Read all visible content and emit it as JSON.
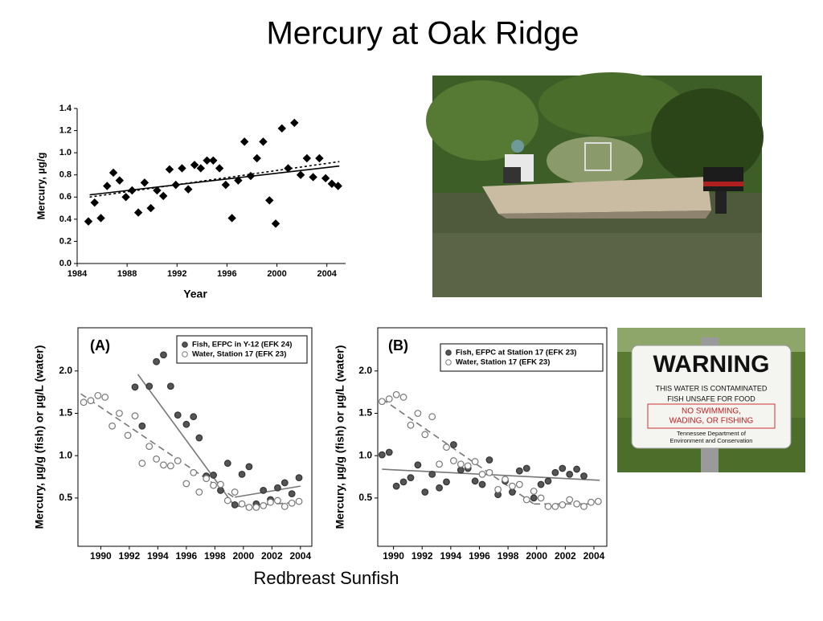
{
  "title": "Mercury at Oak Ridge",
  "caption": "Redbreast Sunfish",
  "chart_data": [
    {
      "type": "scatter",
      "xlabel": "Year",
      "ylabel": "Mercury, µg/g",
      "xlim": [
        1984,
        2005.5
      ],
      "ylim": [
        0,
        1.4
      ],
      "xticks": [
        1984,
        1988,
        1992,
        1996,
        2000,
        2004
      ],
      "yticks": [
        {
          "value": 0,
          "label": "0.0"
        },
        0.2,
        0.4,
        0.6,
        0.8,
        {
          "value": 1,
          "label": "1.0"
        },
        1.2,
        1.4
      ],
      "series": [
        {
          "color": "#000000",
          "marker": "diamond",
          "filled": true,
          "x": [
            1984.9,
            1985.4,
            1985.9,
            1986.4,
            1986.9,
            1987.4,
            1987.9,
            1988.4,
            1988.9,
            1989.4,
            1989.9,
            1990.4,
            1990.9,
            1991.4,
            1991.9,
            1992.4,
            1992.9,
            1993.4,
            1993.9,
            1994.4,
            1994.9,
            1995.4,
            1995.9,
            1996.4,
            1996.9,
            1997.4,
            1997.9,
            1998.4,
            1998.9,
            1999.4,
            1999.9,
            2000.4,
            2000.9,
            2001.4,
            2001.9,
            2002.4,
            2002.9,
            2003.4,
            2003.9,
            2004.4,
            2004.9
          ],
          "values": [
            0.38,
            0.55,
            0.41,
            0.7,
            0.82,
            0.75,
            0.6,
            0.66,
            0.46,
            0.73,
            0.5,
            0.66,
            0.61,
            0.85,
            0.71,
            0.86,
            0.67,
            0.89,
            0.86,
            0.93,
            0.93,
            0.86,
            0.71,
            0.41,
            0.75,
            1.1,
            0.79,
            0.95,
            1.1,
            0.57,
            0.36,
            1.22,
            0.86,
            1.27,
            0.8,
            0.95,
            0.78,
            0.95,
            0.77,
            0.72,
            0.7
          ]
        }
      ],
      "fit_lines": [
        {
          "color": "#000000",
          "dash": false,
          "x": [
            1985,
            2005
          ],
          "values": [
            0.62,
            0.88
          ]
        },
        {
          "color": "#000000",
          "dash": true,
          "x": [
            1985,
            2005
          ],
          "values": [
            0.6,
            0.92
          ]
        }
      ]
    },
    {
      "type": "scatter",
      "annotation": "(A)",
      "ylabel": "Mercury, µg/g (fish) or µg/L (water)",
      "xlim": [
        1988.4,
        2004.8
      ],
      "ylim": [
        -0.07,
        2.51
      ],
      "xticks": [
        1990,
        1992,
        1994,
        1996,
        1998,
        2000,
        2002,
        2004
      ],
      "yticks": [
        0.5,
        {
          "value": 1,
          "label": "1.0"
        },
        1.5,
        {
          "value": 2,
          "label": "2.0"
        }
      ],
      "legend": "upper right",
      "series": [
        {
          "name": "Fish, EFPC in Y-12 (EFK 24)",
          "color": "#555555",
          "marker": "circle",
          "filled": true,
          "x": [
            1992.4,
            1992.9,
            1993.4,
            1993.9,
            1994.4,
            1994.9,
            1995.4,
            1996.0,
            1996.5,
            1996.9,
            1997.4,
            1997.9,
            1998.4,
            1998.9,
            1999.4,
            1999.9,
            2000.4,
            2000.9,
            2001.4,
            2001.9,
            2002.4,
            2002.9,
            2003.4,
            2003.9
          ],
          "values": [
            1.81,
            1.35,
            1.82,
            2.11,
            2.19,
            1.82,
            1.48,
            1.37,
            1.46,
            1.21,
            0.76,
            0.77,
            0.59,
            0.91,
            0.42,
            0.78,
            0.87,
            0.43,
            0.59,
            0.48,
            0.62,
            0.68,
            0.55,
            0.74
          ]
        },
        {
          "name": "Water, Station 17 (EFK 23)",
          "color": "#777777",
          "marker": "circle",
          "filled": false,
          "x": [
            1988.8,
            1989.3,
            1989.8,
            1990.3,
            1990.8,
            1991.3,
            1991.9,
            1992.4,
            1992.9,
            1993.4,
            1993.9,
            1994.4,
            1994.9,
            1995.4,
            1996.0,
            1996.5,
            1996.9,
            1997.4,
            1997.9,
            1998.4,
            1998.9,
            1999.4,
            1999.9,
            2000.4,
            2000.9,
            2001.4,
            2001.9,
            2002.4,
            2002.9,
            2003.4,
            2003.9
          ],
          "values": [
            1.63,
            1.65,
            1.71,
            1.69,
            1.35,
            1.5,
            1.24,
            1.47,
            0.91,
            1.11,
            0.96,
            0.89,
            0.88,
            0.94,
            0.67,
            0.8,
            0.57,
            0.73,
            0.65,
            0.66,
            0.47,
            0.57,
            0.43,
            0.39,
            0.39,
            0.41,
            0.45,
            0.47,
            0.4,
            0.44,
            0.46
          ]
        }
      ],
      "fit_lines": [
        {
          "color": "#777777",
          "dash": false,
          "x": [
            1992.6,
            1999.4
          ],
          "values": [
            1.96,
            0.4
          ]
        },
        {
          "color": "#777777",
          "dash": false,
          "x": [
            1999.4,
            2004.0
          ],
          "values": [
            0.51,
            0.64
          ]
        },
        {
          "color": "#777777",
          "dash": true,
          "x": [
            1988.6,
            1999.4
          ],
          "values": [
            1.73,
            0.5
          ]
        },
        {
          "color": "#777777",
          "dash": true,
          "x": [
            1999.4,
            2004.0
          ],
          "values": [
            0.4,
            0.45
          ]
        }
      ]
    },
    {
      "type": "scatter",
      "annotation": "(B)",
      "ylabel": "Mercury, µg/g (fish) or µg/L (water)",
      "xlim": [
        1988.9,
        2004.9
      ],
      "ylim": [
        -0.07,
        2.51
      ],
      "xticks": [
        1990,
        1992,
        1994,
        1996,
        1998,
        2000,
        2002,
        2004
      ],
      "yticks": [
        0.5,
        {
          "value": 1,
          "label": "1.0"
        },
        1.5,
        {
          "value": 2,
          "label": "2.0"
        }
      ],
      "legend": "upper right",
      "series": [
        {
          "name": "Fish, EFPC at Station 17 (EFK 23)",
          "color": "#555555",
          "marker": "circle",
          "filled": true,
          "x": [
            1989.2,
            1989.7,
            1990.2,
            1990.7,
            1991.2,
            1991.7,
            1992.2,
            1992.7,
            1993.2,
            1993.7,
            1994.2,
            1994.7,
            1995.2,
            1995.7,
            1996.2,
            1996.7,
            1997.3,
            1997.8,
            1998.3,
            1998.8,
            1999.3,
            1999.8,
            2000.3,
            2000.8,
            2001.3,
            2001.8,
            2002.3,
            2002.8,
            2003.3
          ],
          "values": [
            1.01,
            1.04,
            0.64,
            0.69,
            0.74,
            0.89,
            0.57,
            0.78,
            0.62,
            0.69,
            1.13,
            0.83,
            0.85,
            0.7,
            0.66,
            0.95,
            0.54,
            0.7,
            0.57,
            0.82,
            0.85,
            0.5,
            0.66,
            0.7,
            0.8,
            0.85,
            0.78,
            0.84,
            0.76
          ]
        },
        {
          "name": "Water, Station 17 (EFK 23)",
          "color": "#777777",
          "marker": "circle",
          "filled": false,
          "x": [
            1989.2,
            1989.7,
            1990.2,
            1990.7,
            1991.2,
            1991.7,
            1992.2,
            1992.7,
            1993.2,
            1993.7,
            1994.2,
            1994.7,
            1995.2,
            1995.7,
            1996.2,
            1996.7,
            1997.3,
            1997.8,
            1998.3,
            1998.8,
            1999.3,
            1999.8,
            2000.3,
            2000.8,
            2001.3,
            2001.8,
            2002.3,
            2002.8,
            2003.3,
            2003.8,
            2004.3
          ],
          "values": [
            1.64,
            1.67,
            1.72,
            1.69,
            1.36,
            1.5,
            1.25,
            1.46,
            0.9,
            1.1,
            0.94,
            0.9,
            0.88,
            0.93,
            0.78,
            0.8,
            0.6,
            0.72,
            0.64,
            0.66,
            0.48,
            0.58,
            0.5,
            0.4,
            0.4,
            0.42,
            0.48,
            0.43,
            0.4,
            0.45,
            0.46
          ]
        }
      ],
      "fit_lines": [
        {
          "color": "#777777",
          "dash": false,
          "x": [
            1989.2,
            2004.4
          ],
          "values": [
            0.84,
            0.71
          ]
        },
        {
          "color": "#777777",
          "dash": true,
          "x": [
            1989.2,
            1999.8
          ],
          "values": [
            1.67,
            0.43
          ]
        },
        {
          "color": "#777777",
          "dash": true,
          "x": [
            1999.8,
            2004.4
          ],
          "values": [
            0.43,
            0.43
          ]
        }
      ]
    }
  ],
  "sign": {
    "heading": "WARNING",
    "lines": [
      "THIS WATER IS CONTAMINATED",
      "FISH  UNSAFE FOR  FOOD"
    ],
    "red_lines": [
      "NO SWIMMING,",
      "WADING,  OR FISHING"
    ],
    "footer": [
      "Tennessee Department of",
      "Environment and Conservation"
    ]
  }
}
